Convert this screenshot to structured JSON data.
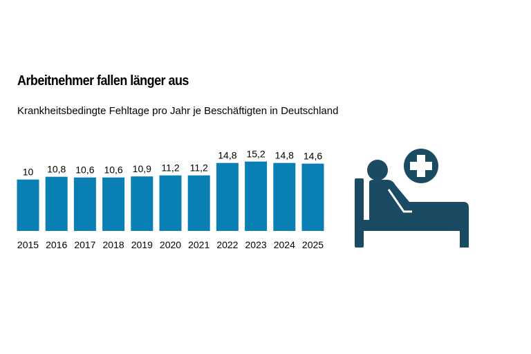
{
  "chart_data": {
    "type": "bar",
    "title": "Arbeitnehmer fallen länger aus",
    "subtitle": "Krankheitsbedingte Fehltage pro Jahr je Beschäftigten in Deutschland",
    "categories": [
      "2015",
      "2016",
      "2017",
      "2018",
      "2019",
      "2020",
      "2021",
      "2022",
      "2023",
      "2024",
      "2025"
    ],
    "values": [
      10,
      10.8,
      10.6,
      10.6,
      10.9,
      11.2,
      11.2,
      14.8,
      15.2,
      14.8,
      14.6
    ],
    "value_labels": [
      "10",
      "10,8",
      "10,6",
      "10,6",
      "10,9",
      "11,2",
      "11,2",
      "14,8",
      "15,2",
      "14,8",
      "14,6"
    ],
    "xlabel": "",
    "ylabel": "",
    "grid": false,
    "legend": "none",
    "bar_color": "#0a7fb3"
  },
  "icons": {
    "illustration": "patient-in-bed-with-medical-cross-icon",
    "color": "#1b4a63"
  }
}
